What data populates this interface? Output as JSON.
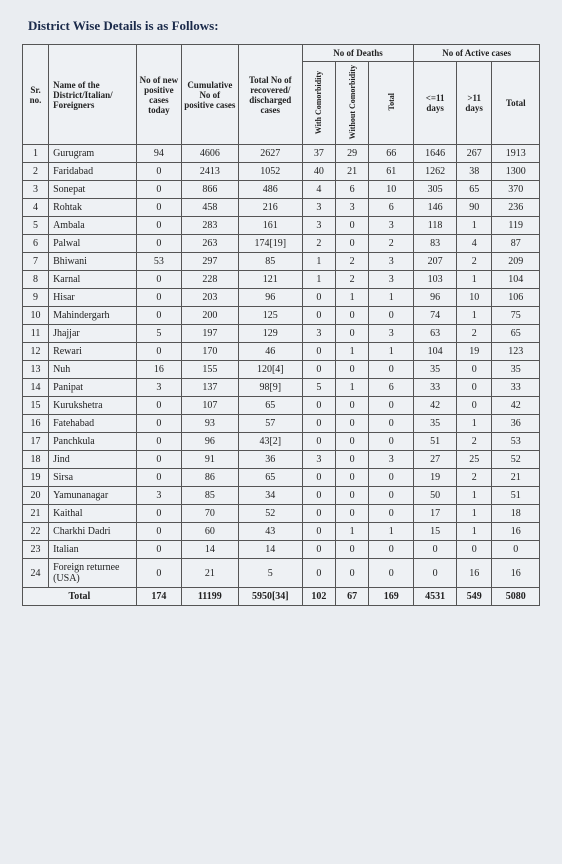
{
  "title": "District Wise Details is as Follows:",
  "headers": {
    "sr": "Sr. no.",
    "name": "Name of the District/Italian/ Foreigners",
    "new": "No of new positive cases today",
    "cum": "Cumulative No of positive cases",
    "rec": "Total No of recovered/ discharged cases",
    "deaths_group": "No of Deaths",
    "deaths_with": "With Comorbidity",
    "deaths_without": "Without Comorbidity",
    "deaths_total": "Total",
    "active_group": "No of Active cases",
    "active_le11": "<=11 days",
    "active_gt11": ">11 days",
    "active_total": "Total"
  },
  "rows": [
    {
      "sr": "1",
      "name": "Gurugram",
      "new": "94",
      "cum": "4606",
      "rec": "2627",
      "wc": "37",
      "woc": "29",
      "dt": "66",
      "l11": "1646",
      "g11": "267",
      "at": "1913"
    },
    {
      "sr": "2",
      "name": "Faridabad",
      "new": "0",
      "cum": "2413",
      "rec": "1052",
      "wc": "40",
      "woc": "21",
      "dt": "61",
      "l11": "1262",
      "g11": "38",
      "at": "1300"
    },
    {
      "sr": "3",
      "name": "Sonepat",
      "new": "0",
      "cum": "866",
      "rec": "486",
      "wc": "4",
      "woc": "6",
      "dt": "10",
      "l11": "305",
      "g11": "65",
      "at": "370"
    },
    {
      "sr": "4",
      "name": "Rohtak",
      "new": "0",
      "cum": "458",
      "rec": "216",
      "wc": "3",
      "woc": "3",
      "dt": "6",
      "l11": "146",
      "g11": "90",
      "at": "236"
    },
    {
      "sr": "5",
      "name": "Ambala",
      "new": "0",
      "cum": "283",
      "rec": "161",
      "wc": "3",
      "woc": "0",
      "dt": "3",
      "l11": "118",
      "g11": "1",
      "at": "119"
    },
    {
      "sr": "6",
      "name": "Palwal",
      "new": "0",
      "cum": "263",
      "rec": "174[19]",
      "wc": "2",
      "woc": "0",
      "dt": "2",
      "l11": "83",
      "g11": "4",
      "at": "87"
    },
    {
      "sr": "7",
      "name": "Bhiwani",
      "new": "53",
      "cum": "297",
      "rec": "85",
      "wc": "1",
      "woc": "2",
      "dt": "3",
      "l11": "207",
      "g11": "2",
      "at": "209"
    },
    {
      "sr": "8",
      "name": "Karnal",
      "new": "0",
      "cum": "228",
      "rec": "121",
      "wc": "1",
      "woc": "2",
      "dt": "3",
      "l11": "103",
      "g11": "1",
      "at": "104"
    },
    {
      "sr": "9",
      "name": "Hisar",
      "new": "0",
      "cum": "203",
      "rec": "96",
      "wc": "0",
      "woc": "1",
      "dt": "1",
      "l11": "96",
      "g11": "10",
      "at": "106"
    },
    {
      "sr": "10",
      "name": "Mahindergarh",
      "new": "0",
      "cum": "200",
      "rec": "125",
      "wc": "0",
      "woc": "0",
      "dt": "0",
      "l11": "74",
      "g11": "1",
      "at": "75"
    },
    {
      "sr": "11",
      "name": "Jhajjar",
      "new": "5",
      "cum": "197",
      "rec": "129",
      "wc": "3",
      "woc": "0",
      "dt": "3",
      "l11": "63",
      "g11": "2",
      "at": "65"
    },
    {
      "sr": "12",
      "name": "Rewari",
      "new": "0",
      "cum": "170",
      "rec": "46",
      "wc": "0",
      "woc": "1",
      "dt": "1",
      "l11": "104",
      "g11": "19",
      "at": "123"
    },
    {
      "sr": "13",
      "name": "Nuh",
      "new": "16",
      "cum": "155",
      "rec": "120[4]",
      "wc": "0",
      "woc": "0",
      "dt": "0",
      "l11": "35",
      "g11": "0",
      "at": "35"
    },
    {
      "sr": "14",
      "name": "Panipat",
      "new": "3",
      "cum": "137",
      "rec": "98[9]",
      "wc": "5",
      "woc": "1",
      "dt": "6",
      "l11": "33",
      "g11": "0",
      "at": "33"
    },
    {
      "sr": "15",
      "name": "Kurukshetra",
      "new": "0",
      "cum": "107",
      "rec": "65",
      "wc": "0",
      "woc": "0",
      "dt": "0",
      "l11": "42",
      "g11": "0",
      "at": "42"
    },
    {
      "sr": "16",
      "name": "Fatehabad",
      "new": "0",
      "cum": "93",
      "rec": "57",
      "wc": "0",
      "woc": "0",
      "dt": "0",
      "l11": "35",
      "g11": "1",
      "at": "36"
    },
    {
      "sr": "17",
      "name": "Panchkula",
      "new": "0",
      "cum": "96",
      "rec": "43[2]",
      "wc": "0",
      "woc": "0",
      "dt": "0",
      "l11": "51",
      "g11": "2",
      "at": "53"
    },
    {
      "sr": "18",
      "name": "Jind",
      "new": "0",
      "cum": "91",
      "rec": "36",
      "wc": "3",
      "woc": "0",
      "dt": "3",
      "l11": "27",
      "g11": "25",
      "at": "52"
    },
    {
      "sr": "19",
      "name": "Sirsa",
      "new": "0",
      "cum": "86",
      "rec": "65",
      "wc": "0",
      "woc": "0",
      "dt": "0",
      "l11": "19",
      "g11": "2",
      "at": "21"
    },
    {
      "sr": "20",
      "name": "Yamunanagar",
      "new": "3",
      "cum": "85",
      "rec": "34",
      "wc": "0",
      "woc": "0",
      "dt": "0",
      "l11": "50",
      "g11": "1",
      "at": "51"
    },
    {
      "sr": "21",
      "name": "Kaithal",
      "new": "0",
      "cum": "70",
      "rec": "52",
      "wc": "0",
      "woc": "0",
      "dt": "0",
      "l11": "17",
      "g11": "1",
      "at": "18"
    },
    {
      "sr": "22",
      "name": "Charkhi Dadri",
      "new": "0",
      "cum": "60",
      "rec": "43",
      "wc": "0",
      "woc": "1",
      "dt": "1",
      "l11": "15",
      "g11": "1",
      "at": "16"
    },
    {
      "sr": "23",
      "name": "Italian",
      "new": "0",
      "cum": "14",
      "rec": "14",
      "wc": "0",
      "woc": "0",
      "dt": "0",
      "l11": "0",
      "g11": "0",
      "at": "0"
    },
    {
      "sr": "24",
      "name": "Foreign returnee (USA)",
      "new": "0",
      "cum": "21",
      "rec": "5",
      "wc": "0",
      "woc": "0",
      "dt": "0",
      "l11": "0",
      "g11": "16",
      "at": "16"
    }
  ],
  "total_row": {
    "label": "Total",
    "new": "174",
    "cum": "11199",
    "rec": "5950[34]",
    "wc": "102",
    "woc": "67",
    "dt": "169",
    "l11": "4531",
    "g11": "549",
    "at": "5080"
  },
  "colors": {
    "background": "#eaedf1",
    "text": "#222222",
    "title": "#1a2a4a",
    "border": "#555555"
  }
}
